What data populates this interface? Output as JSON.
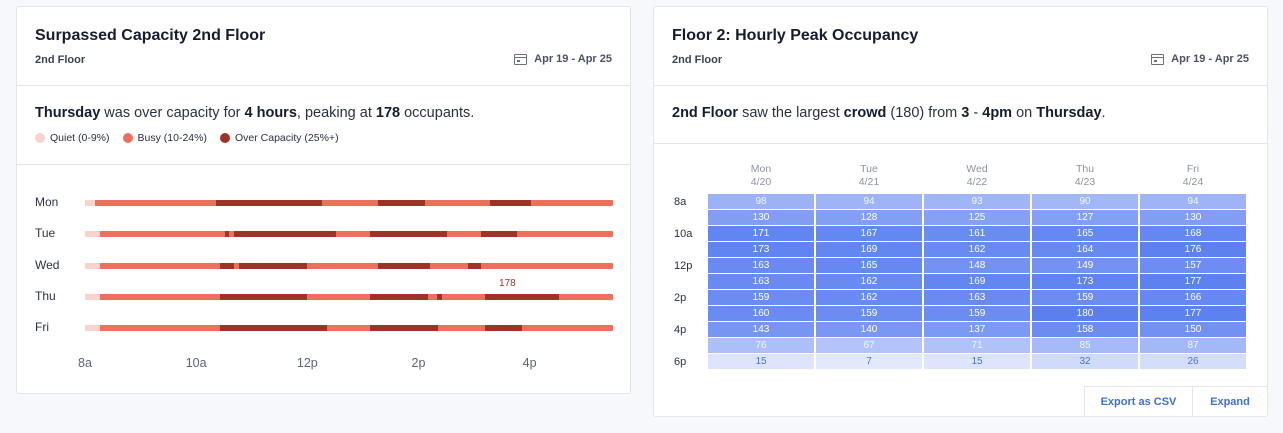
{
  "left_card": {
    "title": "Surpassed Capacity 2nd Floor",
    "subtitle": "2nd Floor",
    "date_range": "Apr 19  -  Apr 25",
    "summary": {
      "day": "Thursday",
      "text1": " was over capacity for ",
      "hours": "4 hours",
      "text2": ", peaking at ",
      "peak": "178",
      "text3": " occupants."
    },
    "legend": [
      {
        "label": "Quiet (0-9%)",
        "color": "#f9d4cf"
      },
      {
        "label": "Busy (10-24%)",
        "color": "#ee705c"
      },
      {
        "label": "Over Capacity (25%+)",
        "color": "#9e3327"
      }
    ],
    "peak_annotation": "178"
  },
  "chart_data": {
    "type": "timeline",
    "x_ticks": [
      "8a",
      "10a",
      "12p",
      "2p",
      "4p"
    ],
    "x_range_hours": [
      8,
      17.5
    ],
    "days": [
      {
        "label": "Mon",
        "quiet": [
          [
            8,
            8.18
          ]
        ],
        "over": [
          [
            10.35,
            12.27
          ],
          [
            13.28,
            14.12
          ],
          [
            15.28,
            16.03
          ]
        ]
      },
      {
        "label": "Tue",
        "quiet": [
          [
            8,
            8.27
          ]
        ],
        "over": [
          [
            10.52,
            10.6
          ],
          [
            10.68,
            12.52
          ],
          [
            13.12,
            14.52
          ],
          [
            15.12,
            15.78
          ]
        ]
      },
      {
        "label": "Wed",
        "quiet": [
          [
            8,
            8.27
          ]
        ],
        "over": [
          [
            10.43,
            10.68
          ],
          [
            10.77,
            12.0
          ],
          [
            13.28,
            14.2
          ],
          [
            14.9,
            15.12
          ]
        ]
      },
      {
        "label": "Thu",
        "quiet": [
          [
            8,
            8.27
          ]
        ],
        "over": [
          [
            10.43,
            12.0
          ],
          [
            13.12,
            14.18
          ],
          [
            14.33,
            14.43
          ],
          [
            15.2,
            16.53
          ]
        ]
      },
      {
        "label": "Fri",
        "quiet": [
          [
            8,
            8.27
          ]
        ],
        "over": [
          [
            10.43,
            12.35
          ],
          [
            13.12,
            14.35
          ],
          [
            15.2,
            15.87
          ]
        ]
      }
    ],
    "peak": {
      "day": "Thu",
      "hour": 15.6,
      "value": 178
    }
  },
  "right_card": {
    "title": "Floor 2: Hourly Peak Occupancy",
    "subtitle": "2nd Floor",
    "date_range": "Apr 19  -  Apr 25",
    "summary": {
      "floor": "2nd Floor",
      "text1": " saw the largest ",
      "crowd": "crowd",
      "text2": " (180) from ",
      "from": "3",
      "dash": " - ",
      "to": "4pm",
      "text3": " on ",
      "day": "Thursday",
      "text4": "."
    },
    "heatmap": {
      "days": [
        {
          "name": "Mon",
          "date": "4/20"
        },
        {
          "name": "Tue",
          "date": "4/21"
        },
        {
          "name": "Wed",
          "date": "4/22"
        },
        {
          "name": "Thu",
          "date": "4/23"
        },
        {
          "name": "Fri",
          "date": "4/24"
        }
      ],
      "row_labels": [
        "8a",
        "",
        "10a",
        "",
        "12p",
        "",
        "2p",
        "",
        "4p",
        "",
        "6p"
      ],
      "values": [
        [
          98,
          94,
          93,
          90,
          94
        ],
        [
          130,
          128,
          125,
          127,
          130
        ],
        [
          171,
          167,
          161,
          165,
          168
        ],
        [
          173,
          169,
          162,
          164,
          176
        ],
        [
          163,
          165,
          148,
          149,
          157
        ],
        [
          163,
          162,
          169,
          173,
          177
        ],
        [
          159,
          162,
          163,
          159,
          166
        ],
        [
          160,
          159,
          159,
          180,
          177
        ],
        [
          143,
          140,
          137,
          158,
          150
        ],
        [
          76,
          67,
          71,
          85,
          87
        ],
        [
          15,
          7,
          15,
          32,
          26
        ]
      ]
    },
    "buttons": {
      "export": "Export as CSV",
      "expand": "Expand"
    }
  }
}
